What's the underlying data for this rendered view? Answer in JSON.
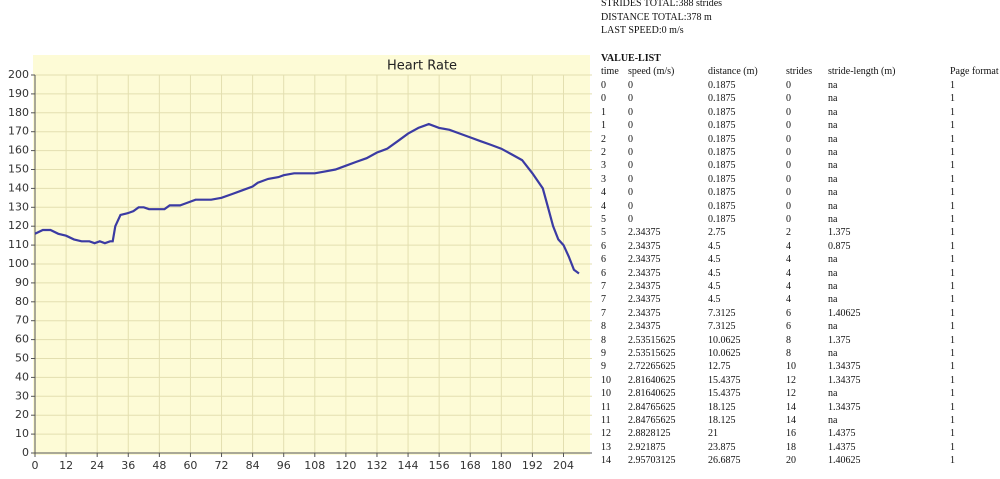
{
  "chart_data": {
    "type": "line",
    "title": "Heart Rate",
    "x": [
      0,
      3,
      6,
      9,
      12,
      15,
      18,
      21,
      23,
      25,
      27,
      29,
      30,
      31,
      33,
      36,
      38,
      40,
      42,
      44,
      48,
      50,
      52,
      56,
      58,
      62,
      68,
      72,
      76,
      80,
      84,
      86,
      90,
      94,
      96,
      100,
      104,
      108,
      112,
      116,
      120,
      124,
      128,
      132,
      136,
      140,
      144,
      148,
      152,
      156,
      160,
      164,
      168,
      172,
      176,
      180,
      184,
      188,
      192,
      196,
      198,
      200,
      202,
      204,
      206,
      208,
      210
    ],
    "values": [
      116,
      118,
      118,
      116,
      115,
      113,
      112,
      112,
      111,
      112,
      111,
      112,
      112,
      120,
      126,
      127,
      128,
      130,
      130,
      129,
      129,
      129,
      131,
      131,
      132,
      134,
      134,
      135,
      137,
      139,
      141,
      143,
      145,
      146,
      147,
      148,
      148,
      148,
      149,
      150,
      152,
      154,
      156,
      159,
      161,
      165,
      169,
      172,
      174,
      172,
      171,
      169,
      167,
      165,
      163,
      161,
      158,
      155,
      148,
      140,
      130,
      120,
      113,
      110,
      104,
      97,
      95
    ],
    "color": "#3b3ba3",
    "xlim": [
      0,
      215
    ],
    "ylim": [
      0,
      200
    ],
    "xticks": [
      0,
      12,
      24,
      36,
      48,
      60,
      72,
      84,
      96,
      108,
      120,
      132,
      144,
      156,
      168,
      180,
      192,
      204
    ],
    "yticks": [
      0,
      10,
      20,
      30,
      40,
      50,
      60,
      70,
      80,
      90,
      100,
      110,
      120,
      130,
      140,
      150,
      160,
      170,
      180,
      190,
      200
    ],
    "grid": true
  },
  "summary": [
    "STRIDES TOTAL:388 strides",
    "DISTANCE TOTAL:378 m",
    "LAST SPEED:0 m/s"
  ],
  "table": {
    "title": "VALUE-LIST",
    "columns": [
      "time",
      "speed (m/s)",
      "distance (m)",
      "strides",
      "stride-length (m)",
      "Page format"
    ],
    "rows": [
      [
        "0",
        "0",
        "0.1875",
        "0",
        "na",
        "1"
      ],
      [
        "0",
        "0",
        "0.1875",
        "0",
        "na",
        "1"
      ],
      [
        "1",
        "0",
        "0.1875",
        "0",
        "na",
        "1"
      ],
      [
        "1",
        "0",
        "0.1875",
        "0",
        "na",
        "1"
      ],
      [
        "2",
        "0",
        "0.1875",
        "0",
        "na",
        "1"
      ],
      [
        "2",
        "0",
        "0.1875",
        "0",
        "na",
        "1"
      ],
      [
        "3",
        "0",
        "0.1875",
        "0",
        "na",
        "1"
      ],
      [
        "3",
        "0",
        "0.1875",
        "0",
        "na",
        "1"
      ],
      [
        "4",
        "0",
        "0.1875",
        "0",
        "na",
        "1"
      ],
      [
        "4",
        "0",
        "0.1875",
        "0",
        "na",
        "1"
      ],
      [
        "5",
        "0",
        "0.1875",
        "0",
        "na",
        "1"
      ],
      [
        "5",
        "2.34375",
        "2.75",
        "2",
        "1.375",
        "1"
      ],
      [
        "6",
        "2.34375",
        "4.5",
        "4",
        "0.875",
        "1"
      ],
      [
        "6",
        "2.34375",
        "4.5",
        "4",
        "na",
        "1"
      ],
      [
        "6",
        "2.34375",
        "4.5",
        "4",
        "na",
        "1"
      ],
      [
        "7",
        "2.34375",
        "4.5",
        "4",
        "na",
        "1"
      ],
      [
        "7",
        "2.34375",
        "4.5",
        "4",
        "na",
        "1"
      ],
      [
        "7",
        "2.34375",
        "7.3125",
        "6",
        "1.40625",
        "1"
      ],
      [
        "8",
        "2.34375",
        "7.3125",
        "6",
        "na",
        "1"
      ],
      [
        "8",
        "2.53515625",
        "10.0625",
        "8",
        "1.375",
        "1"
      ],
      [
        "9",
        "2.53515625",
        "10.0625",
        "8",
        "na",
        "1"
      ],
      [
        "9",
        "2.72265625",
        "12.75",
        "10",
        "1.34375",
        "1"
      ],
      [
        "10",
        "2.81640625",
        "15.4375",
        "12",
        "1.34375",
        "1"
      ],
      [
        "10",
        "2.81640625",
        "15.4375",
        "12",
        "na",
        "1"
      ],
      [
        "11",
        "2.84765625",
        "18.125",
        "14",
        "1.34375",
        "1"
      ],
      [
        "11",
        "2.84765625",
        "18.125",
        "14",
        "na",
        "1"
      ],
      [
        "12",
        "2.8828125",
        "21",
        "16",
        "1.4375",
        "1"
      ],
      [
        "13",
        "2.921875",
        "23.875",
        "18",
        "1.4375",
        "1"
      ],
      [
        "14",
        "2.95703125",
        "26.6875",
        "20",
        "1.40625",
        "1"
      ]
    ]
  }
}
